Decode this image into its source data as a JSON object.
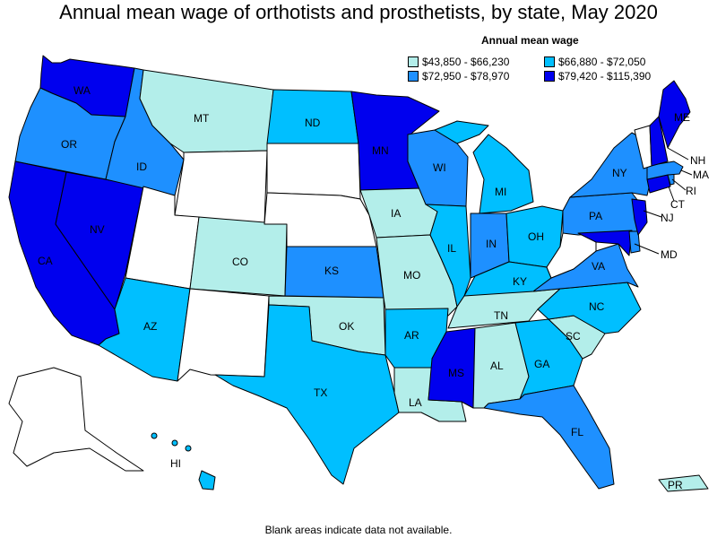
{
  "title": "Annual mean wage of orthotists and prosthetists, by state, May 2020",
  "legend": {
    "title": "Annual mean wage",
    "bins": [
      {
        "label": "$43,850 - $66,230",
        "color": "#b3eeea"
      },
      {
        "label": "$66,880 - $72,050",
        "color": "#00bfff"
      },
      {
        "label": "$72,950 - $78,970",
        "color": "#1e90ff"
      },
      {
        "label": "$79,420 - $115,390",
        "color": "#0000ee"
      }
    ],
    "no_data_color": "#ffffff"
  },
  "footnote": "Blank areas indicate data not available.",
  "states": {
    "WA": {
      "label": "WA",
      "bin": 3
    },
    "OR": {
      "label": "OR",
      "bin": 2
    },
    "CA": {
      "label": "CA",
      "bin": 3
    },
    "NV": {
      "label": "NV",
      "bin": 3
    },
    "ID": {
      "label": "ID",
      "bin": 2
    },
    "MT": {
      "label": "MT",
      "bin": 0
    },
    "WY": {
      "label": "",
      "bin": null
    },
    "UT": {
      "label": "",
      "bin": null
    },
    "AZ": {
      "label": "AZ",
      "bin": 1
    },
    "CO": {
      "label": "CO",
      "bin": 0
    },
    "NM": {
      "label": "",
      "bin": null
    },
    "ND": {
      "label": "ND",
      "bin": 1
    },
    "SD": {
      "label": "",
      "bin": null
    },
    "NE": {
      "label": "",
      "bin": null
    },
    "KS": {
      "label": "KS",
      "bin": 2
    },
    "OK": {
      "label": "OK",
      "bin": 0
    },
    "TX": {
      "label": "TX",
      "bin": 1
    },
    "MN": {
      "label": "MN",
      "bin": 3
    },
    "IA": {
      "label": "IA",
      "bin": 0
    },
    "MO": {
      "label": "MO",
      "bin": 0
    },
    "AR": {
      "label": "AR",
      "bin": 1
    },
    "LA": {
      "label": "LA",
      "bin": 0
    },
    "WI": {
      "label": "WI",
      "bin": 2
    },
    "IL": {
      "label": "IL",
      "bin": 1
    },
    "MS": {
      "label": "MS",
      "bin": 3
    },
    "MI": {
      "label": "MI",
      "bin": 1
    },
    "IN": {
      "label": "IN",
      "bin": 2
    },
    "KY": {
      "label": "KY",
      "bin": 1
    },
    "TN": {
      "label": "TN",
      "bin": 0
    },
    "AL": {
      "label": "AL",
      "bin": 0
    },
    "OH": {
      "label": "OH",
      "bin": 1
    },
    "GA": {
      "label": "GA",
      "bin": 1
    },
    "FL": {
      "label": "FL",
      "bin": 2
    },
    "SC": {
      "label": "SC",
      "bin": 0
    },
    "NC": {
      "label": "NC",
      "bin": 1
    },
    "VA": {
      "label": "VA",
      "bin": 2
    },
    "WV": {
      "label": "",
      "bin": null
    },
    "PA": {
      "label": "PA",
      "bin": 2
    },
    "NY": {
      "label": "NY",
      "bin": 2
    },
    "VT": {
      "label": "",
      "bin": null
    },
    "NH": {
      "label": "NH",
      "bin": 3
    },
    "ME": {
      "label": "ME",
      "bin": 3
    },
    "MA": {
      "label": "MA",
      "bin": 2
    },
    "RI": {
      "label": "RI",
      "bin": 2
    },
    "CT": {
      "label": "CT",
      "bin": 3
    },
    "NJ": {
      "label": "NJ",
      "bin": 3
    },
    "DE": {
      "label": "",
      "bin": 2
    },
    "MD": {
      "label": "MD",
      "bin": 3
    },
    "AK": {
      "label": "",
      "bin": null
    },
    "HI": {
      "label": "HI",
      "bin": 1
    },
    "PR": {
      "label": "PR",
      "bin": 0
    }
  }
}
